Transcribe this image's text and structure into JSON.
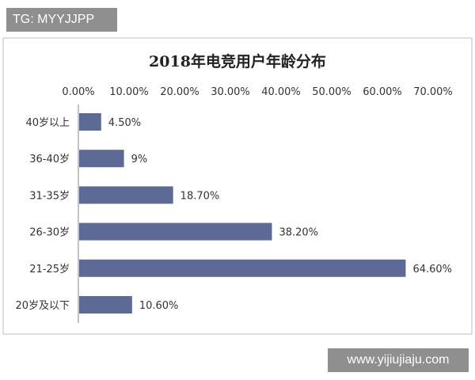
{
  "watermarks": {
    "top": "TG: MYYJJPP",
    "bottom": "www.yijiujiaju.com"
  },
  "chart_data": {
    "type": "bar",
    "orientation": "horizontal",
    "title": "2018年电竞用户年龄分布",
    "categories": [
      "40岁以上",
      "36-40岁",
      "31-35岁",
      "26-30岁",
      "21-25岁",
      "20岁及以下"
    ],
    "values": [
      4.5,
      9,
      18.7,
      38.2,
      64.6,
      10.6
    ],
    "value_labels": [
      "4.50%",
      "9%",
      "18.70%",
      "38.20%",
      "64.60%",
      "10.60%"
    ],
    "xlim": [
      0,
      70
    ],
    "x_ticks": [
      "0.00%",
      "10.00%",
      "20.00%",
      "30.00%",
      "40.00%",
      "50.00%",
      "60.00%",
      "70.00%"
    ],
    "x_axis_position": "top",
    "grid": false,
    "bar_color": "#5e6a96"
  }
}
